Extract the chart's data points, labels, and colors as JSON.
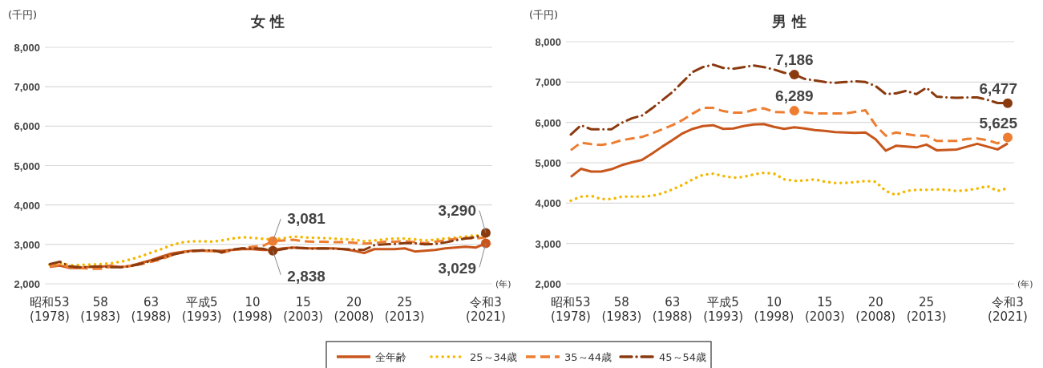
{
  "chart_data": [
    {
      "type": "line",
      "title": "女 性",
      "ylabel": "(千円)",
      "xlabel": "(年)",
      "legend": "bottom",
      "grid": "y",
      "ylim": [
        2000,
        8000
      ],
      "yticks": [
        {
          "value": 2000,
          "label": "2,000"
        },
        {
          "value": 3000,
          "label": "3,000"
        },
        {
          "value": 4000,
          "label": "4,000"
        },
        {
          "value": 5000,
          "label": "5,000"
        },
        {
          "value": 6000,
          "label": "6,000"
        },
        {
          "value": 7000,
          "label": "7,000"
        },
        {
          "value": 8000,
          "label": "8,000"
        }
      ],
      "categories": [
        "昭和53\n(1978)",
        null,
        null,
        null,
        null,
        "58\n(1983)",
        null,
        null,
        null,
        null,
        "63\n(1988)",
        null,
        null,
        null,
        null,
        "平成5\n(1993)",
        null,
        null,
        null,
        null,
        "10\n(1998)",
        null,
        null,
        null,
        null,
        "15\n(2003)",
        null,
        null,
        null,
        null,
        "20\n(2008)",
        null,
        null,
        null,
        null,
        "25\n(2013)",
        null,
        null,
        null,
        null,
        null,
        null,
        null,
        "令和3\n(2021)"
      ],
      "series": [
        {
          "name": "全年齢",
          "color": "#c8561c",
          "line_style": "solid",
          "values": [
            2430,
            2460,
            2400,
            2400,
            2430,
            2430,
            2460,
            2420,
            2460,
            2530,
            2600,
            2690,
            2770,
            2810,
            2840,
            2840,
            2840,
            2840,
            2860,
            2880,
            2880,
            2860,
            2860,
            2900,
            2920,
            2900,
            2900,
            2900,
            2900,
            2880,
            2840,
            2780,
            2880,
            2880,
            2880,
            2900,
            2820,
            2840,
            2860,
            2900,
            2920,
            2940,
            2920,
            3029
          ]
        },
        {
          "name": "25～34歳",
          "color": "#f5b800",
          "line_style": "dotted",
          "values": [
            2480,
            2520,
            2470,
            2480,
            2490,
            2500,
            2520,
            2560,
            2620,
            2700,
            2790,
            2880,
            2980,
            3050,
            3080,
            3080,
            3070,
            3100,
            3150,
            3180,
            3170,
            3140,
            3130,
            3150,
            3200,
            3180,
            3170,
            3160,
            3150,
            3130,
            3120,
            3080,
            3100,
            3130,
            3150,
            3150,
            3130,
            3100,
            3120,
            3150,
            3170,
            3200,
            3230,
            3210
          ]
        },
        {
          "name": "35～44歳",
          "color": "#ed7d31",
          "line_style": "dashed",
          "values": [
            2440,
            2480,
            2420,
            2400,
            2380,
            2380,
            2430,
            2430,
            2450,
            2500,
            2560,
            2620,
            2720,
            2800,
            2830,
            2840,
            2830,
            2790,
            2850,
            2900,
            2940,
            2960,
            3081,
            3100,
            3120,
            3080,
            3070,
            3070,
            3060,
            3060,
            3040,
            3020,
            3030,
            3070,
            3070,
            3080,
            3060,
            3030,
            3070,
            3100,
            3140,
            3160,
            3150,
            3180
          ]
        },
        {
          "name": "45～54歳",
          "color": "#8b3a0f",
          "line_style": "dashdot",
          "values": [
            2500,
            2560,
            2440,
            2420,
            2430,
            2440,
            2420,
            2420,
            2450,
            2510,
            2580,
            2650,
            2730,
            2790,
            2830,
            2850,
            2850,
            2800,
            2870,
            2900,
            2900,
            2890,
            2838,
            2880,
            2920,
            2910,
            2890,
            2900,
            2890,
            2880,
            2870,
            2860,
            2980,
            3000,
            3010,
            3030,
            3030,
            3000,
            3010,
            3050,
            3100,
            3150,
            3180,
            3290
          ]
        }
      ],
      "annotations": [
        {
          "text": "3,081",
          "y": 3081
        },
        {
          "text": "2,838",
          "y": 2838
        },
        {
          "text": "3,290",
          "x": "令和3\n(2021)",
          "y": 3290
        },
        {
          "text": "3,029",
          "x": "令和3\n(2021)",
          "y": 3029
        }
      ]
    },
    {
      "type": "line",
      "title": "男 性",
      "ylabel": "(千円)",
      "xlabel": "(年)",
      "grid": "y",
      "ylim": [
        2000,
        8000
      ],
      "yticks": [
        {
          "value": 2000,
          "label": "2,000"
        },
        {
          "value": 3000,
          "label": "3,000"
        },
        {
          "value": 4000,
          "label": "4,000"
        },
        {
          "value": 5000,
          "label": "5,000"
        },
        {
          "value": 6000,
          "label": "6,000"
        },
        {
          "value": 7000,
          "label": "7,000"
        },
        {
          "value": 8000,
          "label": "8,000"
        }
      ],
      "categories": [
        "昭和53\n(1978)",
        null,
        null,
        null,
        null,
        "58\n(1983)",
        null,
        null,
        null,
        null,
        "63\n(1988)",
        null,
        null,
        null,
        null,
        "平成5\n(1993)",
        null,
        null,
        null,
        null,
        "10\n(1998)",
        null,
        null,
        null,
        null,
        "15\n(2003)",
        null,
        null,
        null,
        null,
        "20\n(2008)",
        null,
        null,
        null,
        null,
        "25\n(2013)",
        null,
        null,
        null,
        null,
        null,
        null,
        null,
        "令和3\n(2021)"
      ],
      "series": [
        {
          "color": "#c8561c",
          "line_style": "solid",
          "values": [
            4650,
            4850,
            4780,
            4780,
            4840,
            4940,
            5010,
            5070,
            5230,
            5400,
            5560,
            5730,
            5840,
            5910,
            5930,
            5840,
            5850,
            5910,
            5950,
            5960,
            5890,
            5840,
            5880,
            5850,
            5810,
            5790,
            5760,
            5750,
            5740,
            5750,
            5580,
            5300,
            5420,
            5400,
            5380,
            5450,
            5310,
            5320,
            5330,
            5400,
            5470,
            5400,
            5330,
            5480
          ]
        },
        {
          "color": "#f5b800",
          "line_style": "dotted",
          "values": [
            4060,
            4160,
            4180,
            4100,
            4100,
            4160,
            4160,
            4160,
            4180,
            4240,
            4340,
            4450,
            4590,
            4700,
            4730,
            4670,
            4630,
            4650,
            4710,
            4750,
            4730,
            4590,
            4550,
            4560,
            4590,
            4530,
            4500,
            4500,
            4520,
            4550,
            4530,
            4300,
            4200,
            4300,
            4330,
            4330,
            4340,
            4330,
            4300,
            4320,
            4360,
            4420,
            4300,
            4370
          ]
        },
        {
          "color": "#ed7d31",
          "line_style": "dashed",
          "values": [
            5310,
            5500,
            5460,
            5440,
            5480,
            5560,
            5600,
            5640,
            5730,
            5830,
            5930,
            6060,
            6220,
            6360,
            6360,
            6280,
            6240,
            6240,
            6310,
            6350,
            6260,
            6250,
            6289,
            6250,
            6220,
            6220,
            6220,
            6220,
            6260,
            6300,
            5930,
            5670,
            5750,
            5710,
            5670,
            5670,
            5540,
            5540,
            5540,
            5590,
            5600,
            5560,
            5480,
            5625
          ]
        },
        {
          "color": "#8b3a0f",
          "line_style": "dashdot",
          "values": [
            5700,
            5930,
            5830,
            5830,
            5830,
            5990,
            6100,
            6170,
            6350,
            6550,
            6750,
            7000,
            7250,
            7370,
            7430,
            7350,
            7330,
            7370,
            7410,
            7370,
            7310,
            7230,
            7186,
            7080,
            7040,
            7000,
            6980,
            7000,
            7020,
            7000,
            6900,
            6700,
            6720,
            6780,
            6700,
            6860,
            6640,
            6620,
            6610,
            6620,
            6620,
            6560,
            6480,
            6477
          ]
        }
      ],
      "annotations": [
        {
          "text": "7,186",
          "y": 7186
        },
        {
          "text": "6,289",
          "y": 6289
        },
        {
          "text": "6,477",
          "x": "令和3\n(2021)",
          "y": 6477
        },
        {
          "text": "5,625",
          "x": "令和3\n(2021)",
          "y": 5625
        }
      ]
    }
  ]
}
